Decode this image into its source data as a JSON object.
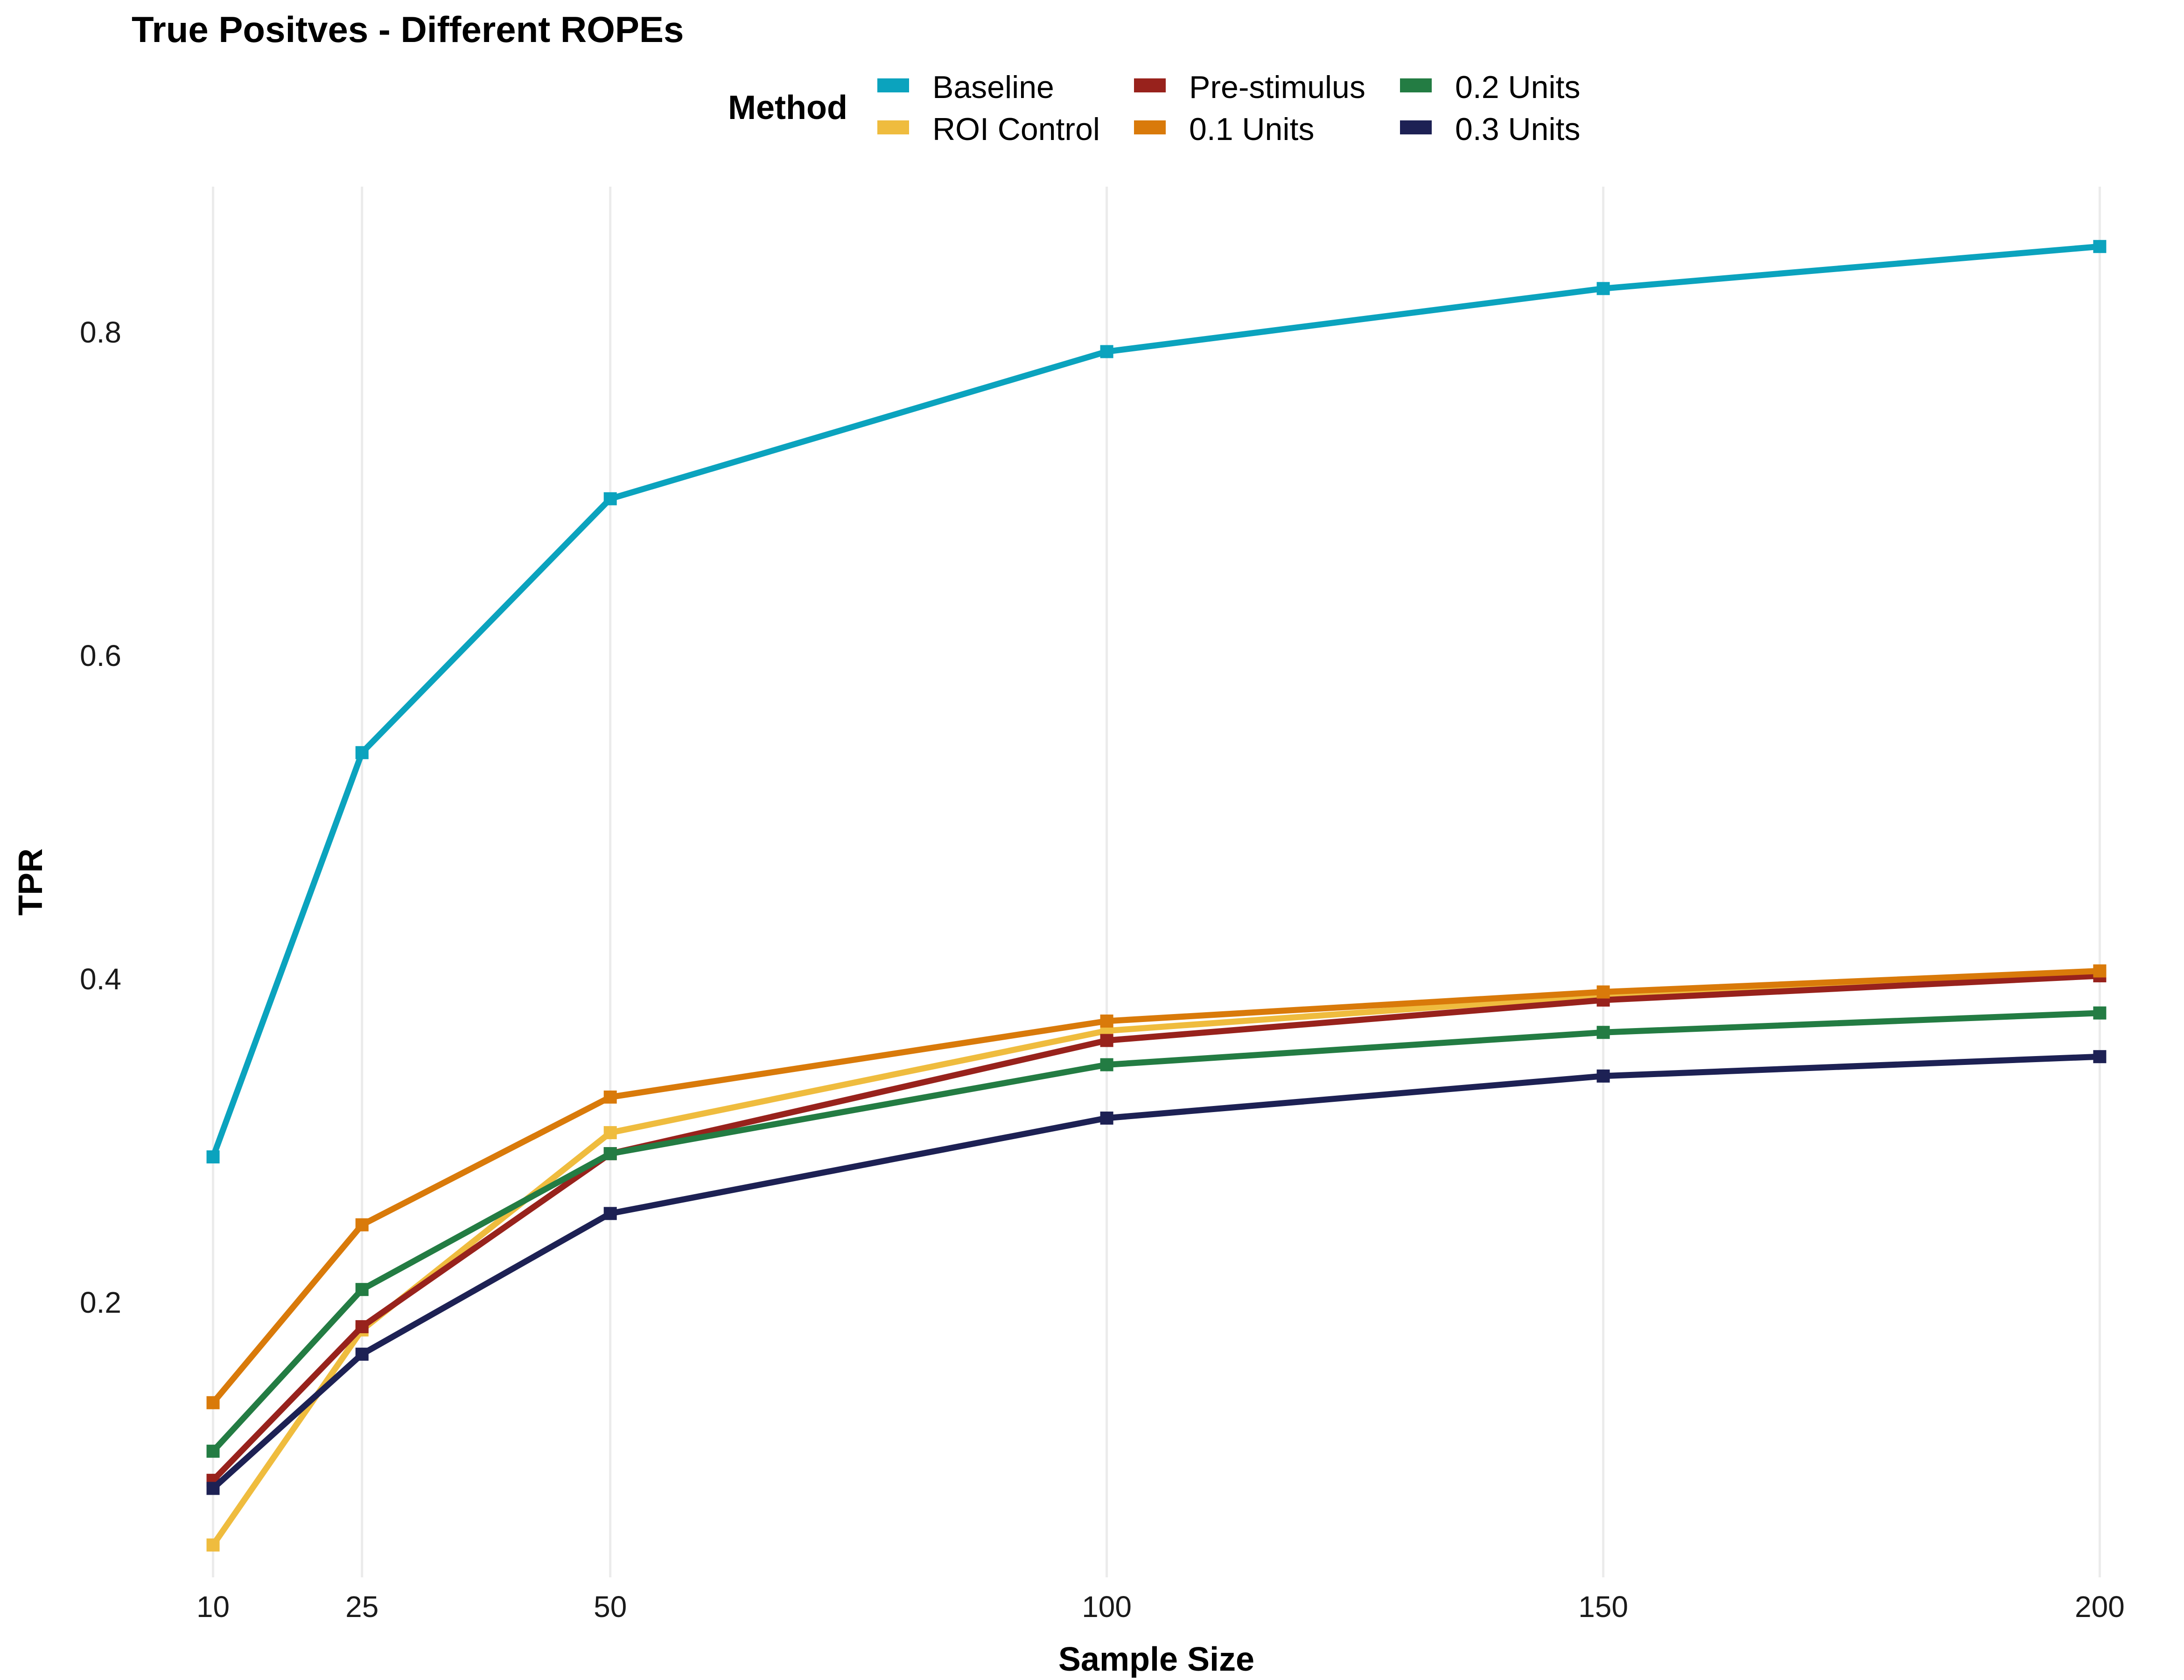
{
  "chart_data": {
    "type": "line",
    "title": "True Positves - Different ROPEs",
    "xlabel": "Sample Size",
    "ylabel": "TPR",
    "x": [
      10,
      25,
      50,
      100,
      150,
      200
    ],
    "x_ticks": [
      "10",
      "25",
      "50",
      "100",
      "150",
      "200"
    ],
    "y_ticks": [
      "0.2",
      "0.4",
      "0.6",
      "0.8"
    ],
    "xlim": [
      8,
      202
    ],
    "ylim": [
      0.03,
      0.89
    ],
    "grid": "vertical major gridlines only",
    "legend": {
      "title": "Method",
      "placement": "top",
      "columns": 3
    },
    "series": [
      {
        "name": "Baseline",
        "color": "#0ba3be",
        "values": [
          0.29,
          0.54,
          0.697,
          0.788,
          0.827,
          0.853
        ]
      },
      {
        "name": "ROI Control",
        "color": "#efbc3e",
        "values": [
          0.05,
          0.183,
          0.305,
          0.368,
          0.39,
          0.405
        ]
      },
      {
        "name": "Pre-stimulus",
        "color": "#98221c",
        "values": [
          0.09,
          0.185,
          0.292,
          0.362,
          0.387,
          0.402
        ]
      },
      {
        "name": "0.1 Units",
        "color": "#d97a0a",
        "values": [
          0.138,
          0.248,
          0.327,
          0.374,
          0.392,
          0.405
        ]
      },
      {
        "name": "0.2 Units",
        "color": "#237c43",
        "values": [
          0.108,
          0.208,
          0.292,
          0.347,
          0.367,
          0.379
        ]
      },
      {
        "name": "0.3 Units",
        "color": "#1d2154",
        "values": [
          0.085,
          0.168,
          0.255,
          0.314,
          0.34,
          0.352
        ]
      }
    ]
  }
}
